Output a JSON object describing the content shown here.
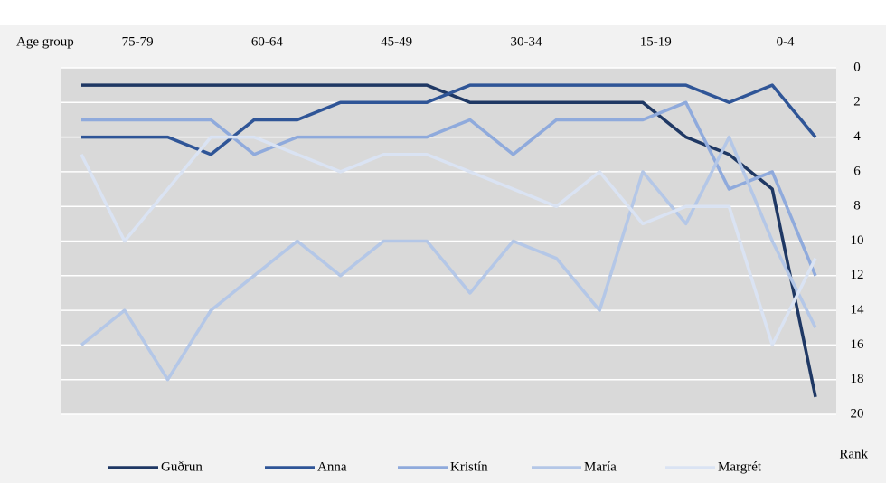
{
  "chart_data": {
    "type": "line",
    "x_label": "Age group",
    "y_label": "Rank",
    "categories": [
      null,
      null,
      "75-79",
      null,
      null,
      "60-64",
      null,
      null,
      "45-49",
      null,
      null,
      "30-34",
      null,
      null,
      "15-19",
      null,
      null,
      "0-4"
    ],
    "series": [
      {
        "name": "Guðrun",
        "color": "#1f3864",
        "values": [
          1,
          1,
          1,
          1,
          1,
          1,
          1,
          1,
          1,
          2,
          2,
          2,
          2,
          2,
          4,
          5,
          7,
          19
        ]
      },
      {
        "name": "Anna",
        "color": "#2f5597",
        "values": [
          4,
          4,
          4,
          5,
          3,
          3,
          2,
          2,
          2,
          1,
          1,
          1,
          1,
          1,
          1,
          2,
          1,
          4
        ]
      },
      {
        "name": "Kristín",
        "color": "#8faadc",
        "values": [
          3,
          3,
          3,
          3,
          5,
          4,
          4,
          4,
          4,
          3,
          5,
          3,
          3,
          3,
          2,
          7,
          6,
          12
        ]
      },
      {
        "name": "María",
        "color": "#b4c7e7",
        "values": [
          16,
          14,
          18,
          14,
          12,
          10,
          12,
          10,
          10,
          13,
          10,
          11,
          14,
          6,
          9,
          4,
          10,
          15
        ]
      },
      {
        "name": "Margrét",
        "color": "#dae3f3",
        "values": [
          5,
          10,
          7,
          4,
          4,
          5,
          6,
          5,
          5,
          6,
          7,
          8,
          6,
          9,
          8,
          8,
          16,
          11
        ]
      }
    ],
    "ylim": [
      0,
      20
    ],
    "yticks": [
      0,
      2,
      4,
      6,
      8,
      10,
      12,
      14,
      16,
      18,
      20
    ],
    "y_reversed": true,
    "grid": true,
    "legend": "bottom"
  }
}
